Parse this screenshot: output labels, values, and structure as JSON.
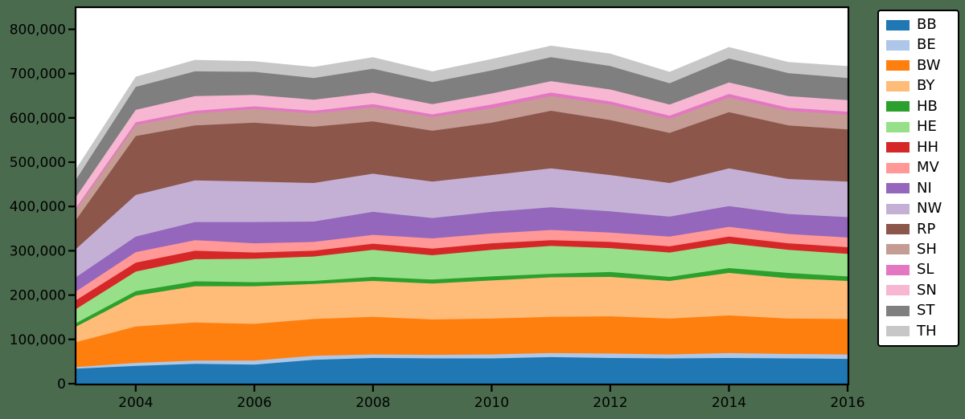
{
  "background_color": "#4a6b4d",
  "plot": {
    "bg_color": "#ffffff",
    "border_color": "#000000",
    "tick_color": "#000000",
    "tick_label_color": "#000000"
  },
  "chart_data": {
    "type": "area",
    "stacked": true,
    "title": "",
    "xlabel": "",
    "ylabel": "",
    "grid": false,
    "legend_position": "right-outside",
    "x": [
      2003,
      2004,
      2005,
      2006,
      2007,
      2008,
      2009,
      2010,
      2011,
      2012,
      2013,
      2014,
      2015,
      2016
    ],
    "xlim": [
      2003,
      2016
    ],
    "ylim": [
      0,
      848000
    ],
    "xticks": {
      "values": [
        2004,
        2006,
        2008,
        2010,
        2012,
        2014,
        2016
      ],
      "labels": [
        "2004",
        "2006",
        "2008",
        "2010",
        "2012",
        "2014",
        "2016"
      ]
    },
    "yticks": {
      "values": [
        0,
        100000,
        200000,
        300000,
        400000,
        500000,
        600000,
        700000,
        800000
      ],
      "labels": [
        "0",
        "100,000",
        "200,000",
        "300,000",
        "400,000",
        "500,000",
        "600,000",
        "700,000",
        "800,000"
      ]
    },
    "series": [
      {
        "name": "BB",
        "color": "#1f77b4",
        "values": [
          34000,
          40000,
          45000,
          43000,
          54000,
          58000,
          57000,
          57000,
          60000,
          58000,
          57000,
          58000,
          57000,
          56000
        ]
      },
      {
        "name": "BE",
        "color": "#aec7e8",
        "values": [
          3500,
          7000,
          7000,
          9000,
          9000,
          8000,
          8000,
          9000,
          9000,
          10000,
          9000,
          11000,
          10000,
          10000
        ]
      },
      {
        "name": "BW",
        "color": "#ff7f0e",
        "values": [
          56500,
          82000,
          86000,
          83000,
          83000,
          85000,
          80000,
          81000,
          82000,
          84000,
          81000,
          85000,
          80000,
          80000
        ]
      },
      {
        "name": "BY",
        "color": "#ffbb78",
        "values": [
          35000,
          70000,
          82000,
          85000,
          79000,
          81000,
          81000,
          86000,
          89000,
          89000,
          85000,
          96000,
          91000,
          86000
        ]
      },
      {
        "name": "HB",
        "color": "#2ca02c",
        "values": [
          8000,
          10000,
          11000,
          9000,
          7000,
          9000,
          9000,
          9000,
          8000,
          11000,
          9000,
          11000,
          12000,
          10000
        ]
      },
      {
        "name": "HE",
        "color": "#98df8a",
        "values": [
          32000,
          44000,
          50000,
          53000,
          55000,
          61000,
          55000,
          60000,
          63000,
          54000,
          55000,
          56000,
          52000,
          51000
        ]
      },
      {
        "name": "HH",
        "color": "#d62728",
        "values": [
          20000,
          20000,
          19000,
          14000,
          13000,
          14000,
          15000,
          15000,
          13000,
          14000,
          14000,
          15000,
          15000,
          15000
        ]
      },
      {
        "name": "MV",
        "color": "#ff9896",
        "values": [
          20000,
          24000,
          24000,
          21000,
          20000,
          20000,
          23000,
          22000,
          23000,
          21000,
          22000,
          22000,
          21000,
          22000
        ]
      },
      {
        "name": "NI",
        "color": "#9467bd",
        "values": [
          32000,
          35000,
          41000,
          48000,
          46000,
          52000,
          46000,
          49000,
          51000,
          48000,
          45000,
          47000,
          45000,
          46000
        ]
      },
      {
        "name": "NW",
        "color": "#c5b0d5",
        "values": [
          64000,
          94000,
          94000,
          91000,
          87000,
          86000,
          82000,
          83000,
          88000,
          82000,
          76000,
          85000,
          79000,
          80000
        ]
      },
      {
        "name": "RP",
        "color": "#8c564b",
        "values": [
          66000,
          133000,
          124000,
          133000,
          127000,
          118000,
          115000,
          118000,
          130000,
          124000,
          113000,
          127000,
          121000,
          118000
        ]
      },
      {
        "name": "SH",
        "color": "#c49c94",
        "values": [
          23000,
          25000,
          27000,
          31000,
          30000,
          32000,
          31000,
          33000,
          33000,
          35000,
          32000,
          33000,
          33000,
          33000
        ]
      },
      {
        "name": "SL",
        "color": "#e377c2",
        "values": [
          4000,
          6000,
          6000,
          6000,
          6000,
          7000,
          6000,
          8000,
          8000,
          7000,
          7000,
          8000,
          7000,
          7000
        ]
      },
      {
        "name": "SN",
        "color": "#f7b6d2",
        "values": [
          25000,
          28000,
          33000,
          26000,
          25000,
          26000,
          23000,
          25000,
          26000,
          27000,
          25000,
          26000,
          26000,
          26000
        ]
      },
      {
        "name": "ST",
        "color": "#7f7f7f",
        "values": [
          39000,
          52000,
          56000,
          52000,
          49000,
          54000,
          50000,
          52000,
          54000,
          53000,
          48000,
          54000,
          52000,
          50000
        ]
      },
      {
        "name": "TH",
        "color": "#c7c7c7",
        "values": [
          24000,
          23000,
          26000,
          24000,
          25000,
          26000,
          24000,
          26000,
          26000,
          28000,
          26000,
          26000,
          25000,
          27000
        ]
      }
    ]
  }
}
